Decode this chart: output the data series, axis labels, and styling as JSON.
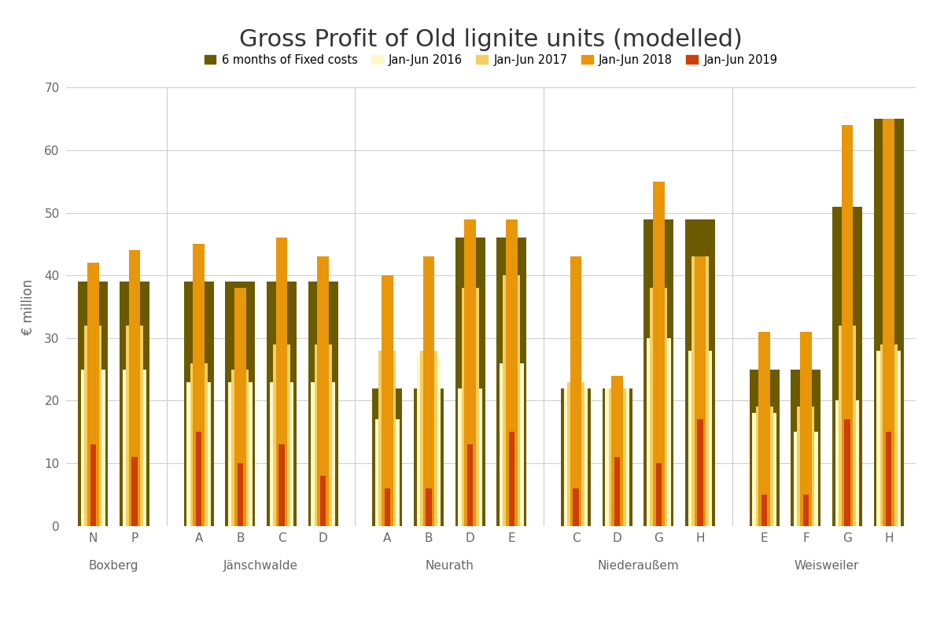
{
  "title": "Gross Profit of Old lignite units (modelled)",
  "ylabel": "€ million",
  "ylim": [
    0,
    70
  ],
  "yticks": [
    0,
    10,
    20,
    30,
    40,
    50,
    60,
    70
  ],
  "plants": [
    {
      "group": "Boxberg",
      "unit": "N"
    },
    {
      "group": "Boxberg",
      "unit": "P"
    },
    {
      "group": "Jänschwalde",
      "unit": "A"
    },
    {
      "group": "Jänschwalde",
      "unit": "B"
    },
    {
      "group": "Jänschwalde",
      "unit": "C"
    },
    {
      "group": "Jänschwalde",
      "unit": "D"
    },
    {
      "group": "Neurath",
      "unit": "A"
    },
    {
      "group": "Neurath",
      "unit": "B"
    },
    {
      "group": "Neurath",
      "unit": "D"
    },
    {
      "group": "Neurath",
      "unit": "E"
    },
    {
      "group": "Niederaußem",
      "unit": "C"
    },
    {
      "group": "Niederaußem",
      "unit": "D"
    },
    {
      "group": "Niederaußem",
      "unit": "G"
    },
    {
      "group": "Niederaußem",
      "unit": "H"
    },
    {
      "group": "Weisweiler",
      "unit": "E"
    },
    {
      "group": "Weisweiler",
      "unit": "F"
    },
    {
      "group": "Weisweiler",
      "unit": "G"
    },
    {
      "group": "Weisweiler",
      "unit": "H"
    }
  ],
  "series": {
    "fixed_costs": [
      39,
      39,
      39,
      39,
      39,
      39,
      22,
      22,
      46,
      46,
      22,
      22,
      49,
      49,
      25,
      25,
      51,
      65
    ],
    "jan_jun_2016": [
      25,
      25,
      23,
      23,
      23,
      23,
      17,
      27,
      22,
      26,
      22,
      22,
      30,
      28,
      18,
      15,
      20,
      28
    ],
    "jan_jun_2017": [
      32,
      32,
      26,
      25,
      29,
      29,
      28,
      28,
      38,
      40,
      23,
      22,
      38,
      43,
      19,
      19,
      32,
      29
    ],
    "jan_jun_2018": [
      42,
      44,
      45,
      38,
      46,
      43,
      40,
      43,
      49,
      49,
      43,
      24,
      55,
      43,
      31,
      31,
      64,
      65
    ],
    "jan_jun_2019": [
      13,
      11,
      15,
      10,
      13,
      8,
      6,
      6,
      13,
      15,
      6,
      11,
      10,
      17,
      5,
      5,
      17,
      15
    ]
  },
  "colors": {
    "fixed_costs": "#6b5a00",
    "jan_jun_2016": "#fef9c8",
    "jan_jun_2017": "#f5d060",
    "jan_jun_2018": "#e8960a",
    "jan_jun_2019": "#cc3e0a"
  },
  "bar_widths": {
    "fixed_costs": 0.72,
    "jan_jun_2016": 0.58,
    "jan_jun_2017": 0.42,
    "jan_jun_2018": 0.28,
    "jan_jun_2019": 0.14
  },
  "legend_labels": [
    "6 months of Fixed costs",
    "Jan-Jun 2016",
    "Jan-Jun 2017",
    "Jan-Jun 2018",
    "Jan-Jun 2019"
  ],
  "groups": [
    "Boxberg",
    "Jänschwalde",
    "Neurath",
    "Niederaußem",
    "Weisweiler"
  ],
  "group_sizes": [
    2,
    4,
    4,
    4,
    4
  ],
  "background_color": "#ffffff"
}
